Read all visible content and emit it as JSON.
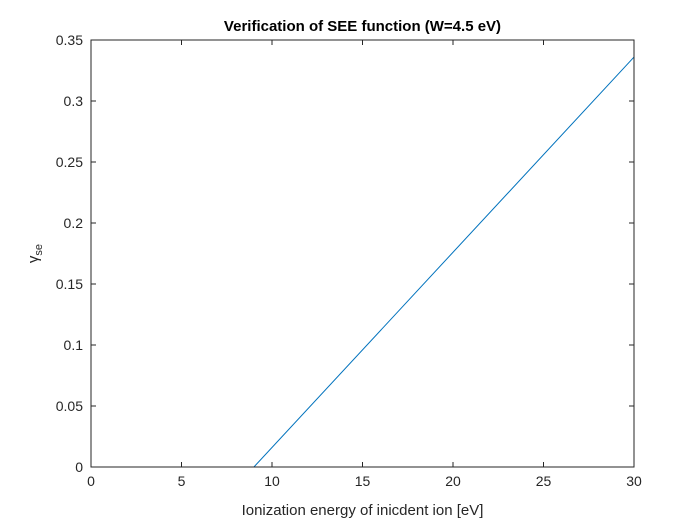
{
  "chart_data": {
    "type": "line",
    "title": "Verification of SEE function (W=4.5 eV)",
    "xlabel": "Ionization energy of inicdent ion [eV]",
    "ylabel_symbol": "γ",
    "ylabel_subscript": "se",
    "xlim": [
      0,
      30
    ],
    "ylim": [
      0,
      0.35
    ],
    "xticks": [
      0,
      5,
      10,
      15,
      20,
      25,
      30
    ],
    "xtick_labels": [
      "0",
      "5",
      "10",
      "15",
      "20",
      "25",
      "30"
    ],
    "yticks": [
      0,
      0.05,
      0.1,
      0.15,
      0.2,
      0.25,
      0.3,
      0.35
    ],
    "ytick_labels": [
      "0",
      "0.05",
      "0.1",
      "0.15",
      "0.2",
      "0.25",
      "0.3",
      "0.35"
    ],
    "grid": false,
    "series": [
      {
        "color": "#0072bd",
        "x": [
          0,
          9,
          30
        ],
        "y": [
          0,
          0,
          0.336
        ]
      }
    ]
  }
}
